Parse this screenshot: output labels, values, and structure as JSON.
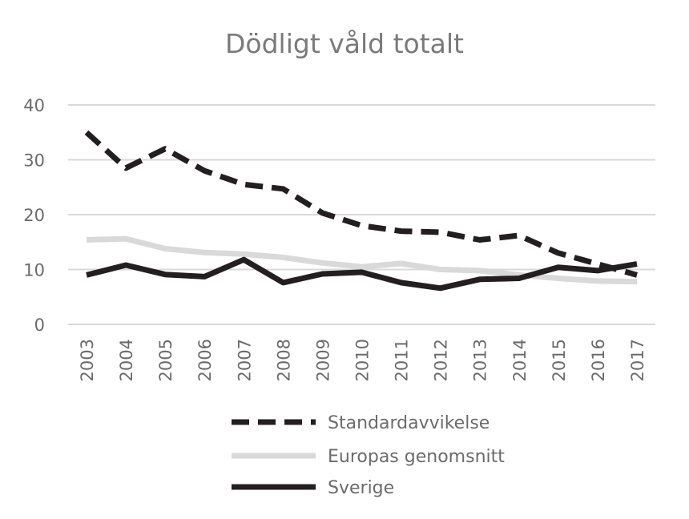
{
  "chart_data": {
    "type": "line",
    "title": "Dödligt våld totalt",
    "xlabel": "",
    "ylabel": "",
    "categories": [
      "2003",
      "2004",
      "2005",
      "2006",
      "2007",
      "2008",
      "2009",
      "2010",
      "2011",
      "2012",
      "2013",
      "2014",
      "2015",
      "2016",
      "2017"
    ],
    "ylim": [
      0,
      40
    ],
    "yticks": [
      0,
      10,
      20,
      30,
      40
    ],
    "grid": true,
    "legend_position": "bottom",
    "series": [
      {
        "name": "Standardavvikelse",
        "style": "dashed",
        "color": "#231f20",
        "values": [
          35,
          28.5,
          32,
          28,
          25.5,
          24.7,
          20.3,
          18,
          17,
          16.8,
          15.4,
          16.2,
          13,
          11,
          9
        ]
      },
      {
        "name": "Europas genomsnitt",
        "style": "solid",
        "color": "#d9d9d9",
        "values": [
          15.4,
          15.6,
          13.8,
          13.1,
          12.8,
          12.2,
          11.2,
          10.5,
          11.1,
          10,
          9.8,
          9,
          8.4,
          7.9,
          7.8
        ]
      },
      {
        "name": "Sverige",
        "style": "solid",
        "color": "#231f20",
        "values": [
          9,
          10.8,
          9.1,
          8.7,
          11.8,
          7.6,
          9.2,
          9.5,
          7.6,
          6.6,
          8.2,
          8.4,
          10.4,
          9.8,
          11
        ]
      }
    ]
  }
}
